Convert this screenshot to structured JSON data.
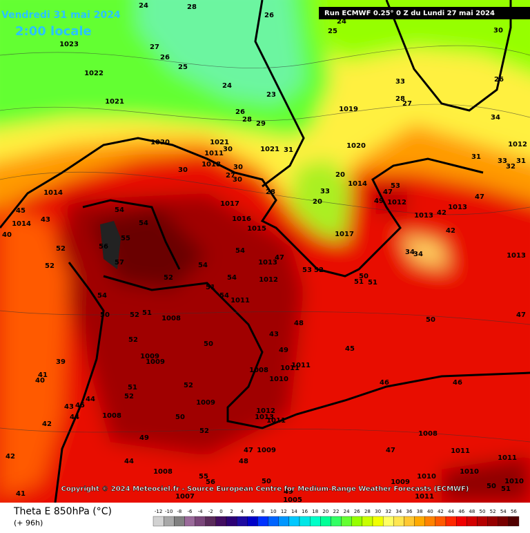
{
  "header": {
    "date": "Vendredi 31 mai 2024",
    "time": "2:00 locale",
    "run": "Run ECMWF 0.25° 0 Z du Lundi 27 mai 2024"
  },
  "copyright": "Copyright © 2024 Meteociel.fr - Source European Centre for Medium-Range Weather Forecasts (ECMWF)",
  "footer": {
    "title": "Theta E 850hPa (°C)",
    "lead": "(+ 96h)"
  },
  "legend": {
    "labels": [
      -12,
      -10,
      -8,
      -6,
      -4,
      -2,
      0,
      2,
      4,
      6,
      8,
      10,
      12,
      14,
      16,
      18,
      20,
      22,
      24,
      26,
      28,
      30,
      32,
      34,
      36,
      38,
      40,
      42,
      44,
      46,
      48,
      50,
      52,
      54,
      56
    ],
    "colors": [
      "#d2d2d2",
      "#a8a8a8",
      "#808080",
      "#9a6a9a",
      "#7a467a",
      "#5a2a5a",
      "#420c60",
      "#2c0074",
      "#1e0aa0",
      "#0000c8",
      "#0032ff",
      "#0064ff",
      "#0096ff",
      "#00c8ff",
      "#00e6e6",
      "#00ffc8",
      "#00ff96",
      "#32ff64",
      "#64ff32",
      "#96ff00",
      "#c8ff00",
      "#f0ff00",
      "#ffff64",
      "#ffe650",
      "#ffc832",
      "#ffaa00",
      "#ff8200",
      "#ff5a00",
      "#ff2800",
      "#f00000",
      "#d20000",
      "#b40000",
      "#960000",
      "#780000",
      "#500000"
    ]
  },
  "map": {
    "labels": [
      1023,
      1022,
      1021,
      1020,
      1021,
      1011,
      1018,
      1021,
      1020,
      1019,
      1014,
      1014,
      1017,
      1016,
      1015,
      1014,
      1012,
      1013,
      1013,
      1012,
      1013,
      1013,
      1012,
      1011,
      1017,
      1008,
      1009,
      1009,
      1008,
      1011,
      1011,
      1010,
      1009,
      1012,
      1013,
      1011,
      1008,
      1009,
      1008,
      1011,
      1011,
      1008,
      1010,
      1010,
      1010,
      1009,
      1007,
      1005,
      1011,
      24,
      28,
      26,
      25,
      24,
      30,
      27,
      26,
      25,
      24,
      23,
      33,
      28,
      27,
      26,
      34,
      26,
      28,
      29,
      30,
      31,
      30,
      30,
      27,
      30,
      28,
      33,
      20,
      20,
      31,
      33,
      32,
      31,
      47,
      53,
      49,
      42,
      47,
      42,
      45,
      43,
      40,
      54,
      54,
      55,
      57,
      56,
      52,
      52,
      54,
      52,
      54,
      51,
      54,
      53,
      52,
      47,
      50,
      51,
      51,
      34,
      34,
      54,
      54,
      50,
      52,
      51,
      52,
      48,
      43,
      49,
      50,
      45,
      50,
      47,
      39,
      41,
      40,
      52,
      51,
      52,
      46,
      46,
      45,
      44,
      44,
      43,
      42,
      42,
      50,
      52,
      49,
      47,
      48,
      44,
      47,
      55,
      56,
      50,
      50,
      51,
      41,
      49
    ]
  }
}
